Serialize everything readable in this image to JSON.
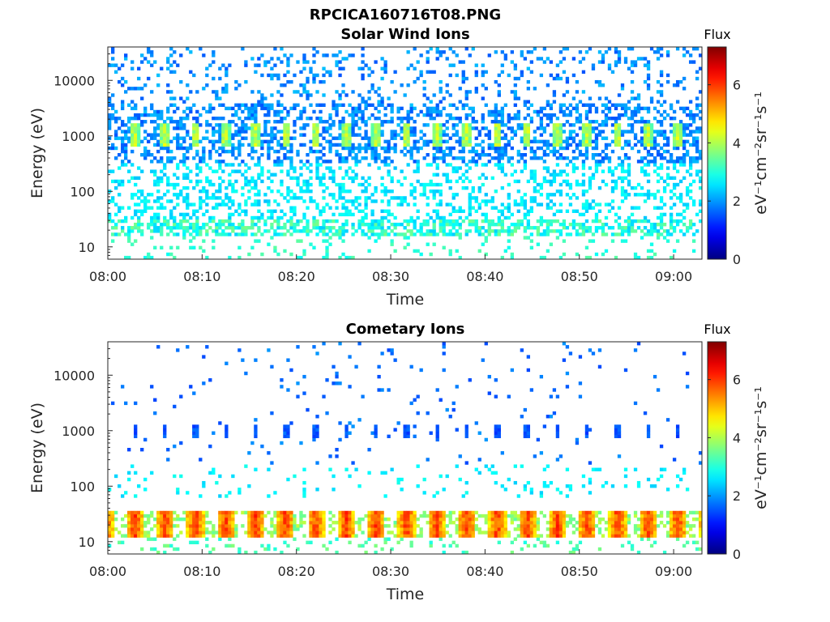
{
  "figure_title": "RPCICA160716T08.PNG",
  "chart_data": [
    {
      "type": "heatmap",
      "title": "Solar Wind Ions",
      "xlabel": "Time",
      "ylabel": "Energy (eV)",
      "x_tick_labels": [
        "08:00",
        "08:10",
        "08:20",
        "08:30",
        "08:40",
        "08:50",
        "09:00"
      ],
      "y_tick_labels": [
        "10",
        "100",
        "1000",
        "10000"
      ],
      "y_scale": "log",
      "ylim": [
        6,
        40000
      ],
      "colorbar": {
        "label": "Flux",
        "units": "eV⁻¹cm⁻²sr⁻¹s⁻¹",
        "tick_labels": [
          "0",
          "2",
          "4",
          "6"
        ],
        "range": [
          0,
          7.3
        ],
        "colormap": "jet"
      },
      "features": {
        "dense_burst_energy_eV": 1000,
        "burst_period_min": 3.2,
        "burst_flux": 4.2,
        "background_flux_high_energy": 1.5,
        "background_flux_mid_energy": 2.6,
        "low_energy_band_eV": [
          15,
          30
        ],
        "low_energy_band_flux": 3.0
      }
    },
    {
      "type": "heatmap",
      "title": "Cometary Ions",
      "xlabel": "Time",
      "ylabel": "Energy (eV)",
      "x_tick_labels": [
        "08:00",
        "08:10",
        "08:20",
        "08:30",
        "08:40",
        "08:50",
        "09:00"
      ],
      "y_tick_labels": [
        "10",
        "100",
        "1000",
        "10000"
      ],
      "y_scale": "log",
      "ylim": [
        6,
        40000
      ],
      "colorbar": {
        "label": "Flux",
        "units": "eV⁻¹cm⁻²sr⁻¹s⁻¹",
        "tick_labels": [
          "0",
          "2",
          "4",
          "6"
        ],
        "range": [
          0,
          7.3
        ],
        "colormap": "jet"
      },
      "features": {
        "burst_energy_eV": 1000,
        "burst_period_min": 3.2,
        "burst_flux": 1.5,
        "low_energy_band_eV": [
          12,
          35
        ],
        "low_energy_band_flux": 4.8,
        "low_energy_band_peak_flux": 6.0
      }
    }
  ]
}
